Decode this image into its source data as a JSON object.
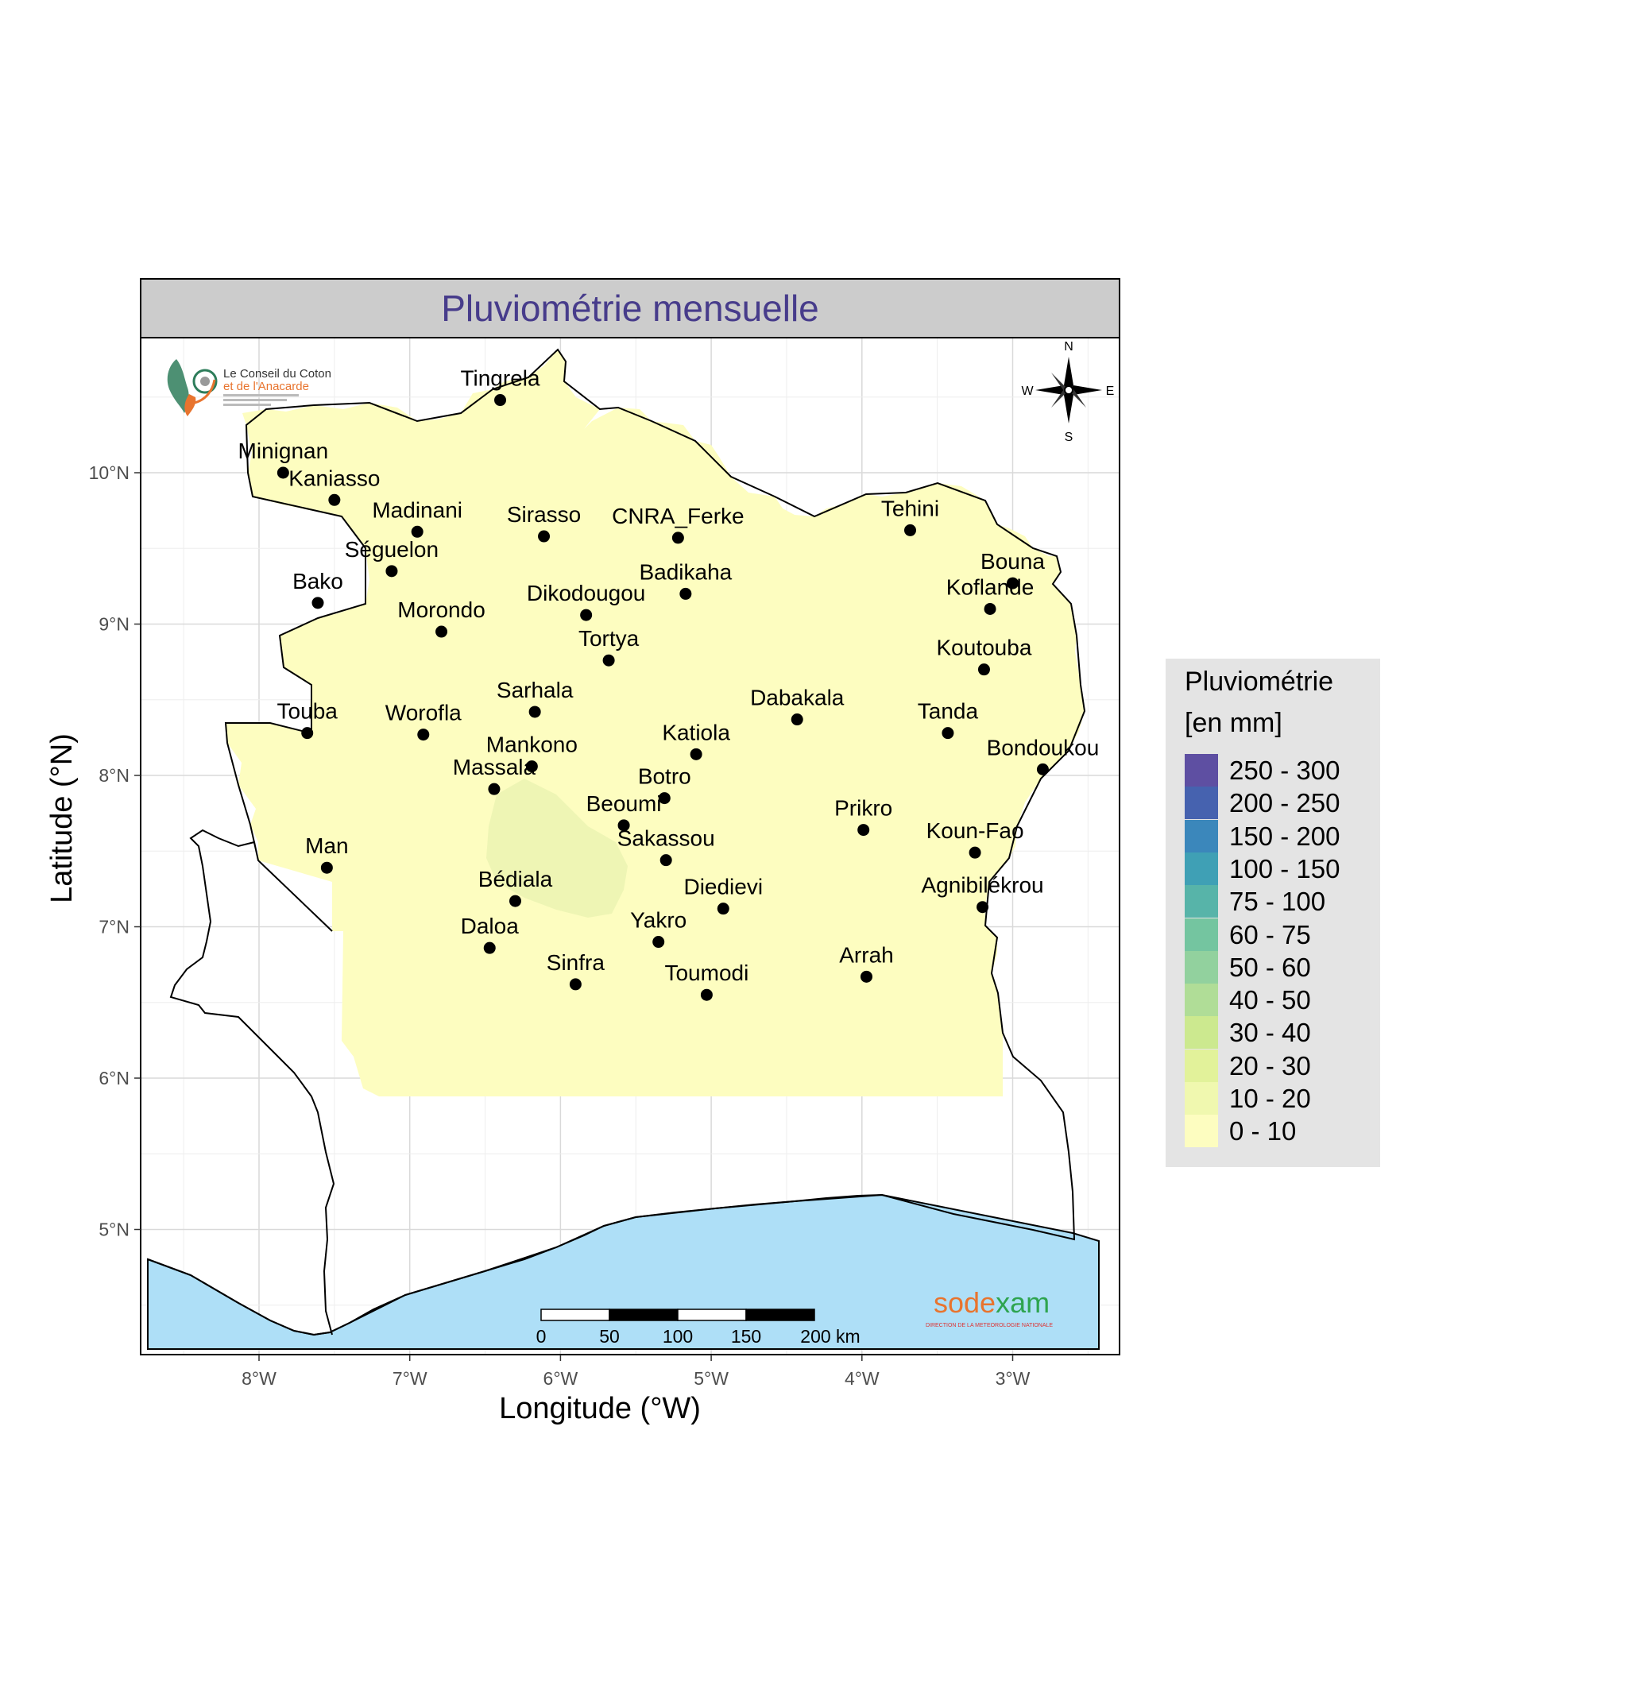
{
  "panel": {
    "title": "Pluviométrie mensuelle",
    "title_color": "#473C8B",
    "strip_color": "#cccccc"
  },
  "axes": {
    "x_label": "Longitude (°W)",
    "y_label": "Latitude (°N)",
    "x_ticks": [
      "8°W",
      "7°W",
      "6°W",
      "5°W",
      "4°W",
      "3°W"
    ],
    "y_ticks": [
      "10°N",
      "9°N",
      "8°N",
      "7°N",
      "6°N",
      "5°N"
    ],
    "grid": true
  },
  "legend": {
    "title_line1": "Pluviométrie",
    "title_line2": "[en mm]",
    "items": [
      {
        "label": "250 - 300",
        "color": "#5E4FA2"
      },
      {
        "label": "200 - 250",
        "color": "#4662AF"
      },
      {
        "label": "150 - 200",
        "color": "#3B87BB"
      },
      {
        "label": "100 - 150",
        "color": "#3FA0B5"
      },
      {
        "label": "75 - 100",
        "color": "#57B4A9"
      },
      {
        "label": "60 - 75",
        "color": "#74C5A0"
      },
      {
        "label": "50 - 60",
        "color": "#92D19E"
      },
      {
        "label": "40 - 50",
        "color": "#B0DD97"
      },
      {
        "label": "30 - 40",
        "color": "#CCE98F"
      },
      {
        "label": "20 - 30",
        "color": "#E2F29A"
      },
      {
        "label": "10 - 20",
        "color": "#F0F8AF"
      },
      {
        "label": "0 - 10",
        "color": "#FDFDC0"
      }
    ]
  },
  "stations": [
    {
      "name": "Tingrela",
      "lon": -6.4,
      "lat": 10.48
    },
    {
      "name": "Minignan",
      "lon": -7.84,
      "lat": 10.0
    },
    {
      "name": "Kaniasso",
      "lon": -7.5,
      "lat": 9.82
    },
    {
      "name": "Madinani",
      "lon": -6.95,
      "lat": 9.61
    },
    {
      "name": "Sirasso",
      "lon": -6.11,
      "lat": 9.58
    },
    {
      "name": "CNRA_Ferke",
      "lon": -5.22,
      "lat": 9.57
    },
    {
      "name": "Tehini",
      "lon": -3.68,
      "lat": 9.62
    },
    {
      "name": "Séguelon",
      "lon": -7.12,
      "lat": 9.35
    },
    {
      "name": "Bouna",
      "lon": -3.0,
      "lat": 9.27
    },
    {
      "name": "Badikaha",
      "lon": -5.17,
      "lat": 9.2
    },
    {
      "name": "Bako",
      "lon": -7.61,
      "lat": 9.14
    },
    {
      "name": "Koflande",
      "lon": -3.15,
      "lat": 9.1
    },
    {
      "name": "Dikodougou",
      "lon": -5.83,
      "lat": 9.06
    },
    {
      "name": "Morondo",
      "lon": -6.79,
      "lat": 8.95
    },
    {
      "name": "Tortya",
      "lon": -5.68,
      "lat": 8.76
    },
    {
      "name": "Koutouba",
      "lon": -3.19,
      "lat": 8.7
    },
    {
      "name": "Sarhala",
      "lon": -6.17,
      "lat": 8.42
    },
    {
      "name": "Dabakala",
      "lon": -4.43,
      "lat": 8.37
    },
    {
      "name": "Touba",
      "lon": -7.68,
      "lat": 8.28
    },
    {
      "name": "Worofla",
      "lon": -6.91,
      "lat": 8.27
    },
    {
      "name": "Tanda",
      "lon": -3.43,
      "lat": 8.28
    },
    {
      "name": "Katiola",
      "lon": -5.1,
      "lat": 8.14
    },
    {
      "name": "Mankono",
      "lon": -6.19,
      "lat": 8.06
    },
    {
      "name": "Bondoukou",
      "lon": -2.8,
      "lat": 8.04
    },
    {
      "name": "Massala",
      "lon": -6.44,
      "lat": 7.91
    },
    {
      "name": "Botro",
      "lon": -5.31,
      "lat": 7.85
    },
    {
      "name": "Beoumi",
      "lon": -5.58,
      "lat": 7.67
    },
    {
      "name": "Prikro",
      "lon": -3.99,
      "lat": 7.64
    },
    {
      "name": "Koun-Fao",
      "lon": -3.25,
      "lat": 7.49
    },
    {
      "name": "Sakassou",
      "lon": -5.3,
      "lat": 7.44
    },
    {
      "name": "Man",
      "lon": -7.55,
      "lat": 7.39
    },
    {
      "name": "Bédiala",
      "lon": -6.3,
      "lat": 7.17
    },
    {
      "name": "Diedievi",
      "lon": -4.92,
      "lat": 7.12
    },
    {
      "name": "Agnibilékrou",
      "lon": -3.2,
      "lat": 7.13
    },
    {
      "name": "Yakro",
      "lon": -5.35,
      "lat": 6.9
    },
    {
      "name": "Daloa",
      "lon": -6.47,
      "lat": 6.86
    },
    {
      "name": "Arrah",
      "lon": -3.97,
      "lat": 6.67
    },
    {
      "name": "Sinfra",
      "lon": -5.9,
      "lat": 6.62
    },
    {
      "name": "Toumodi",
      "lon": -5.03,
      "lat": 6.55
    }
  ],
  "scale_bar": {
    "labels": [
      "0",
      "50",
      "100",
      "150",
      "200 km"
    ]
  },
  "compass": {
    "n": "N",
    "s": "S",
    "e": "E",
    "w": "W"
  },
  "logos": {
    "coton_line1": "Le Conseil du Coton",
    "coton_line2": "et de l'Anacarde",
    "sodexam_a": "sode",
    "sodexam_x": "x",
    "sodexam_b": "am",
    "sodexam_sub": "DIRECTION DE LA METEOROLOGIE NATIONALE"
  },
  "colors": {
    "rain_fill": "#FDFDC0",
    "rain_patch": "#EEF5B4",
    "ocean": "#AEDFF7"
  }
}
